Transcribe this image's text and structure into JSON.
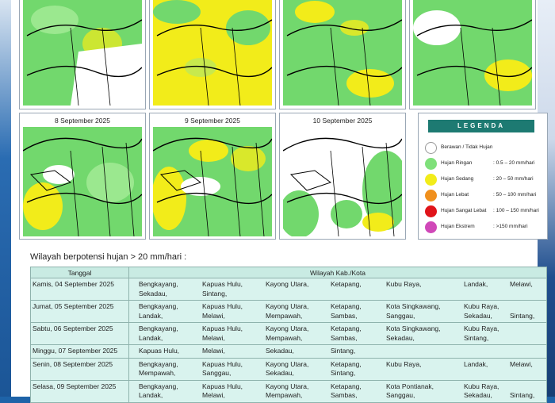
{
  "maps": {
    "top_row": [
      {
        "caption": ""
      },
      {
        "caption": ""
      },
      {
        "caption": ""
      },
      {
        "caption": ""
      }
    ],
    "bottom_row": [
      {
        "caption": "8 September 2025"
      },
      {
        "caption": "9 September 2025"
      },
      {
        "caption": "10 September 2025"
      }
    ]
  },
  "legend": {
    "title": "LEGENDA",
    "items": [
      {
        "label": "Berawan / Tidak Hujan",
        "range": "",
        "color": "#ffffff"
      },
      {
        "label": "Hujan Ringan",
        "range": ": 0.5 – 20 mm/hari",
        "color": "#7fe07a"
      },
      {
        "label": "Hujan Sedang",
        "range": ": 20 – 50 mm/hari",
        "color": "#f2ec1a"
      },
      {
        "label": "Hujan Lebat",
        "range": ": 50 – 100 mm/hari",
        "color": "#f0901e"
      },
      {
        "label": "Hujan Sangat Lebat",
        "range": ": 100 – 150 mm/hari",
        "color": "#e0141a"
      },
      {
        "label": "Hujan Ekstrem",
        "range": ": >150 mm/hari",
        "color": "#d048b8"
      }
    ]
  },
  "section_title": "Wilayah berpotensi hujan > 20 mm/hari :",
  "table": {
    "headers": [
      "Tanggal",
      "Wilayah Kab./Kota"
    ],
    "rows": [
      {
        "date": "Kamis, 04 September 2025",
        "areas": [
          "Bengkayang,",
          "Kapuas Hulu,",
          "Kayong Utara,",
          "Ketapang,",
          "Kubu Raya,",
          "Landak,",
          "Melawi,",
          "Sekadau,",
          "Sintang,"
        ]
      },
      {
        "date": "Jumat, 05 September 2025",
        "areas": [
          "Bengkayang,",
          "Kapuas Hulu,",
          "Kayong Utara,",
          "Ketapang,",
          "Kota Singkawang,",
          "Kubu Raya,",
          "",
          "Landak,",
          "Melawi,",
          "Mempawah,",
          "Sambas,",
          "Sanggau,",
          "Sekadau,",
          "Sintang,"
        ]
      },
      {
        "date": "Sabtu, 06 September 2025",
        "areas": [
          "Bengkayang,",
          "Kapuas Hulu,",
          "Kayong Utara,",
          "Ketapang,",
          "Kota Singkawang,",
          "Kubu Raya,",
          "",
          "Landak,",
          "Melawi,",
          "Mempawah,",
          "Sambas,",
          "Sekadau,",
          "Sintang,"
        ]
      },
      {
        "date": "Minggu, 07 September 2025",
        "areas": [
          "Kapuas Hulu,",
          "Melawi,",
          "Sekadau,",
          "Sintang,"
        ]
      },
      {
        "date": "Senin, 08 September 2025",
        "areas": [
          "Bengkayang,",
          "Kapuas Hulu,",
          "Kayong Utara,",
          "Ketapang,",
          "Kubu Raya,",
          "Landak,",
          "Melawi,",
          "Mempawah,",
          "Sanggau,",
          "Sekadau,",
          "Sintang,"
        ]
      },
      {
        "date": "Selasa, 09 September 2025",
        "areas": [
          "Bengkayang,",
          "Kapuas Hulu,",
          "Kayong Utara,",
          "Ketapang,",
          "Kota Pontianak,",
          "Kubu Raya,",
          "",
          "Landak,",
          "Melawi,",
          "Mempawah,",
          "Sambas,",
          "Sanggau,",
          "Sekadau,",
          "Sintang,"
        ]
      }
    ]
  }
}
